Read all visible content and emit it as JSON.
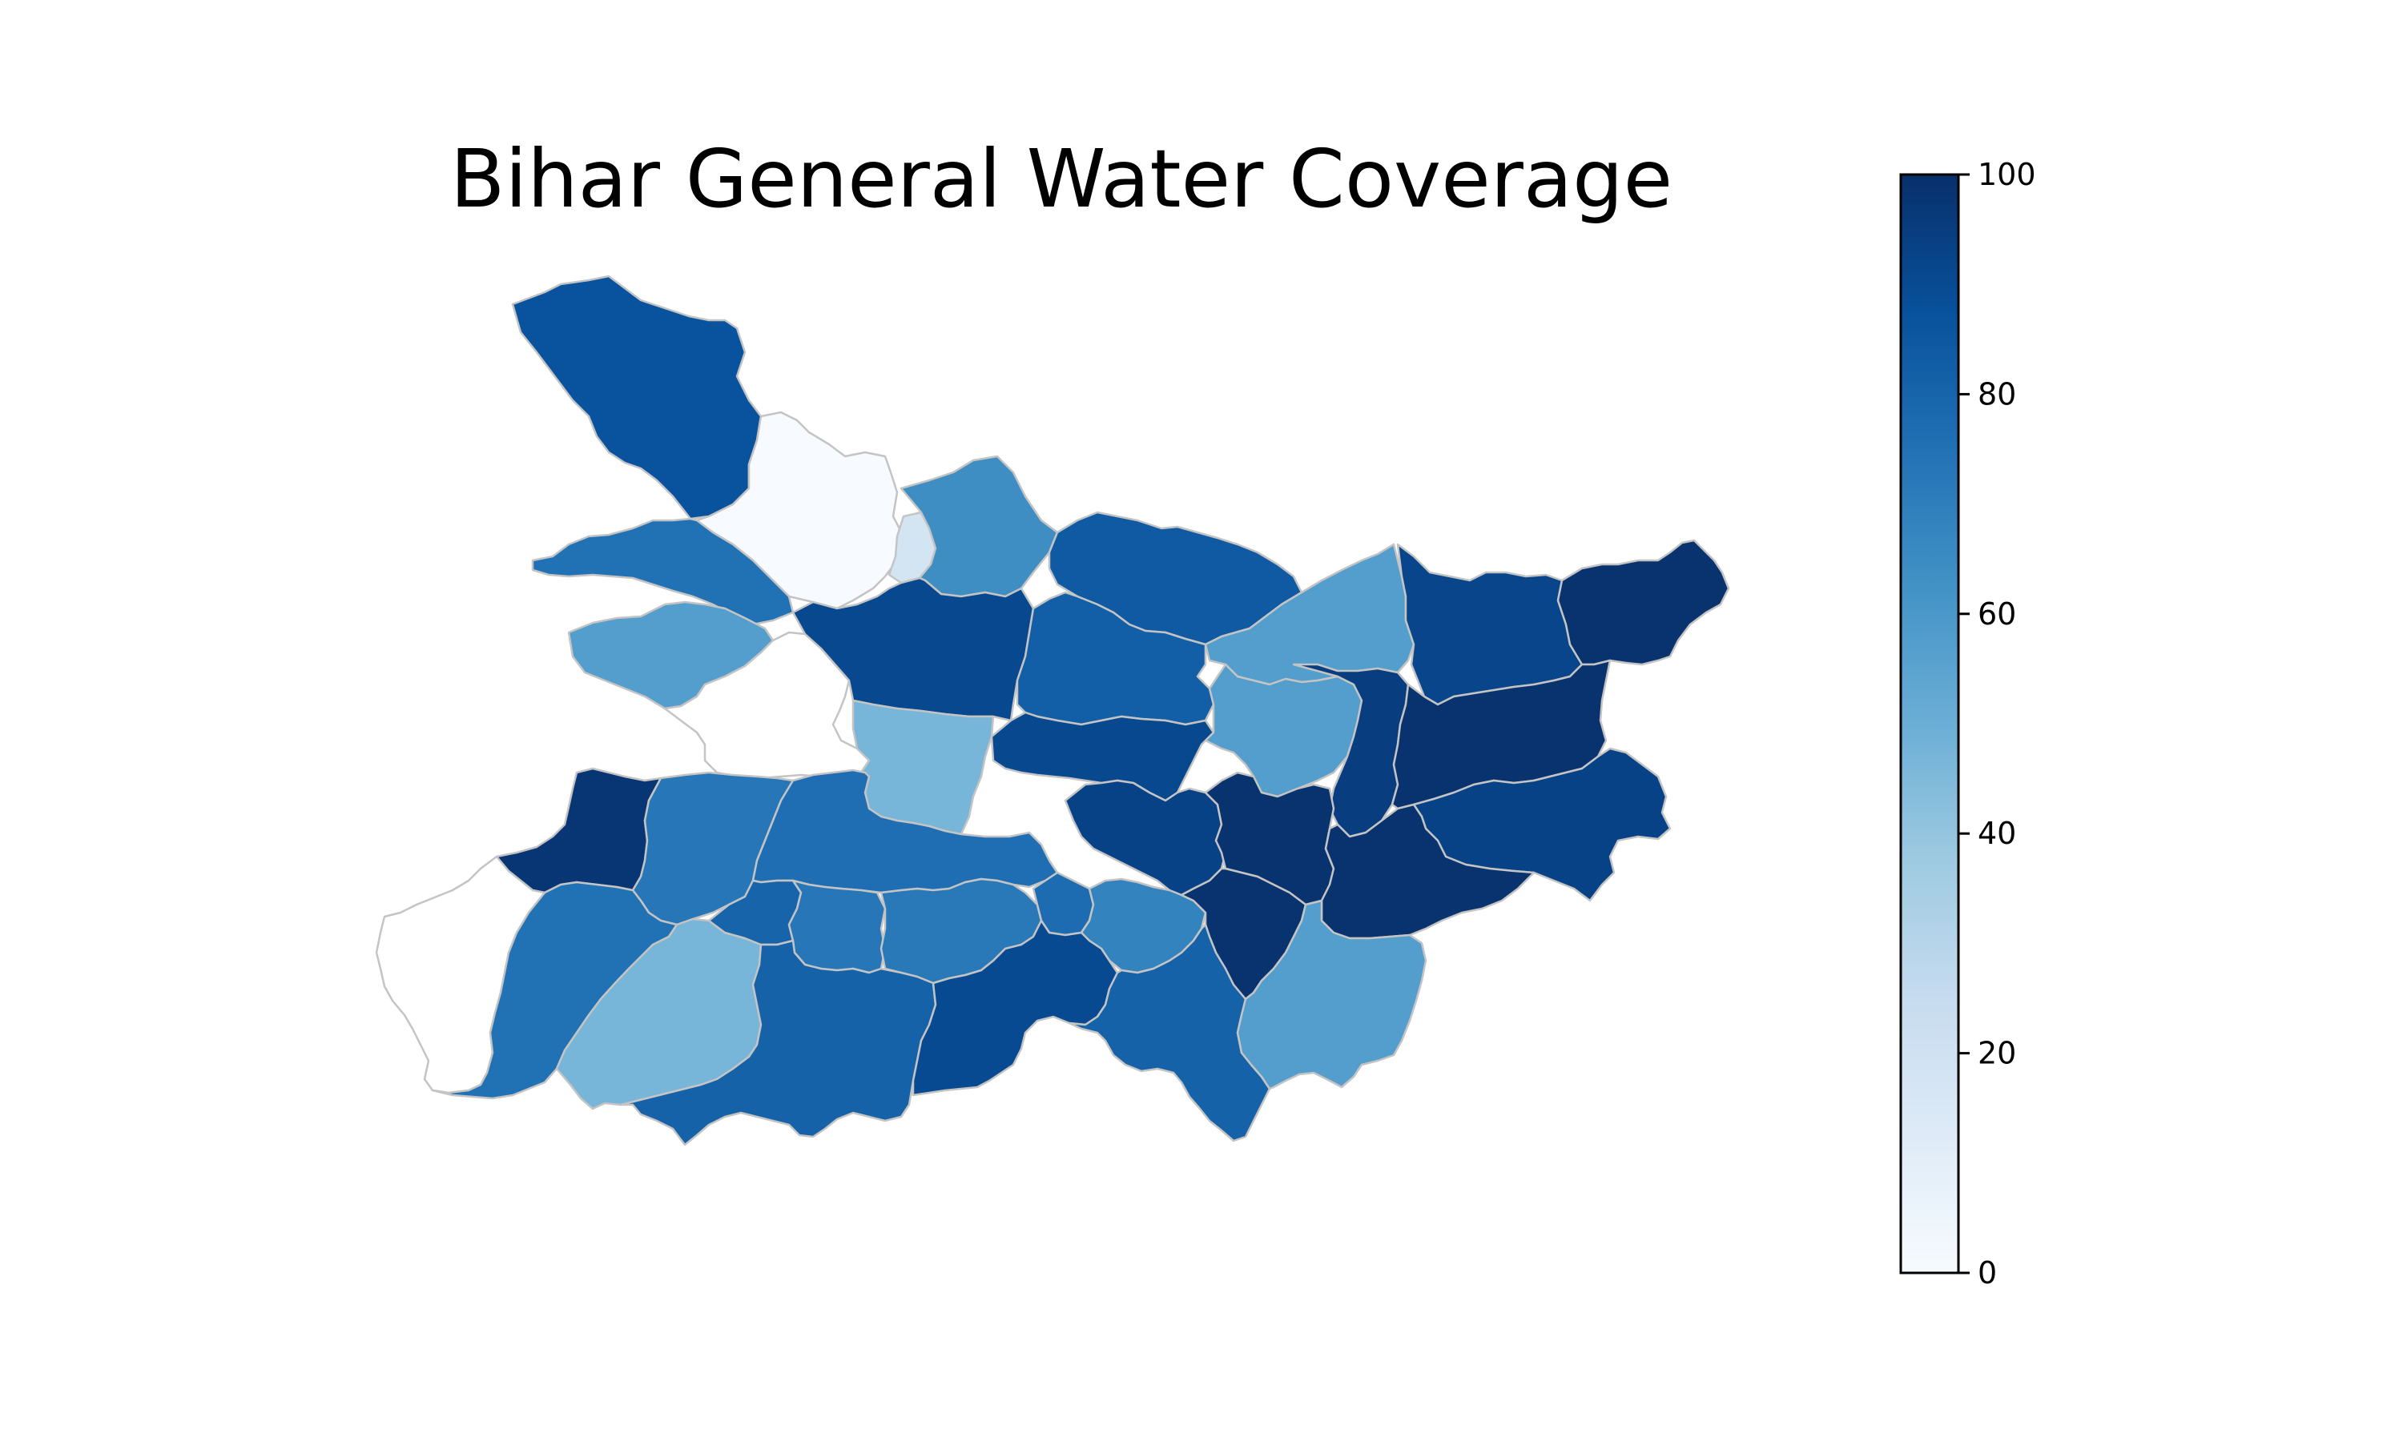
{
  "title": "Bihar General Water Coverage",
  "colormap": {
    "name": "Blues",
    "stops": [
      "#f7fbff",
      "#deebf7",
      "#c6dbef",
      "#9ecae1",
      "#6baed6",
      "#4292c6",
      "#2171b5",
      "#08519c",
      "#08306b"
    ],
    "range": [
      0,
      100
    ]
  },
  "colorbar": {
    "ticks": [
      {
        "value": 0,
        "label": "0"
      },
      {
        "value": 20,
        "label": "20"
      },
      {
        "value": 40,
        "label": "40"
      },
      {
        "value": 60,
        "label": "60"
      },
      {
        "value": 80,
        "label": "80"
      },
      {
        "value": 100,
        "label": "100"
      }
    ]
  },
  "districts": [
    {
      "id": "west-champaran",
      "value": 87
    },
    {
      "id": "east-champaran",
      "value": 0
    },
    {
      "id": "sheohar",
      "value": 18
    },
    {
      "id": "sitamarhi",
      "value": 64
    },
    {
      "id": "madhubani",
      "value": 84
    },
    {
      "id": "gopalganj",
      "value": 75
    },
    {
      "id": "siwan",
      "value": 57
    },
    {
      "id": "saran",
      "value": null
    },
    {
      "id": "muzaffarpur",
      "value": 91
    },
    {
      "id": "darbhanga",
      "value": 82
    },
    {
      "id": "supaul",
      "value": 57
    },
    {
      "id": "araria",
      "value": 92
    },
    {
      "id": "kishanganj",
      "value": 99
    },
    {
      "id": "vaishali",
      "value": 47
    },
    {
      "id": "samastipur",
      "value": 91
    },
    {
      "id": "saharsa",
      "value": 57
    },
    {
      "id": "madhepura",
      "value": 95
    },
    {
      "id": "purnia",
      "value": 99
    },
    {
      "id": "katihar",
      "value": 93
    },
    {
      "id": "buxar",
      "value": 98
    },
    {
      "id": "bhojpur",
      "value": 73
    },
    {
      "id": "patna",
      "value": 76
    },
    {
      "id": "begusarai",
      "value": 93
    },
    {
      "id": "khagaria",
      "value": 99
    },
    {
      "id": "bhagalpur",
      "value": 99
    },
    {
      "id": "kaimur",
      "value": null
    },
    {
      "id": "rohtas",
      "value": 75
    },
    {
      "id": "aurangabad",
      "value": 47
    },
    {
      "id": "arwal",
      "value": 80
    },
    {
      "id": "jehanabad",
      "value": 73
    },
    {
      "id": "nalanda",
      "value": 72
    },
    {
      "id": "sheikhpura",
      "value": 77
    },
    {
      "id": "lakhisarai",
      "value": 68
    },
    {
      "id": "munger",
      "value": 99
    },
    {
      "id": "gaya",
      "value": 81
    },
    {
      "id": "nawada",
      "value": 90
    },
    {
      "id": "jamui",
      "value": 81
    },
    {
      "id": "banka",
      "value": 57
    }
  ]
}
